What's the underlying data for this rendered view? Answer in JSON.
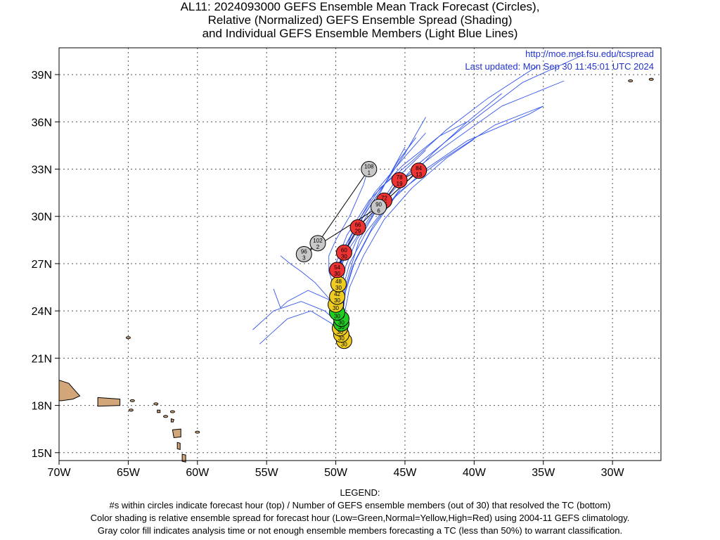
{
  "title": {
    "line1": "AL11: 2024093000 GEFS Ensemble Mean Track Forecast (Circles),",
    "line2": "Relative (Normalized) GEFS Ensemble Spread (Shading)",
    "line3": "and Individual GEFS Ensemble Members (Light Blue Lines)"
  },
  "header_info": {
    "url": "http://moe.met.fsu.edu/tcspread",
    "updated": "Last updated: Mon Sep 30 11:45:01 UTC 2024"
  },
  "legend": {
    "heading": "LEGEND:",
    "line1": "#s within circles indicate forecast hour (top) / Number of GEFS ensemble members (out of 30) that resolved the TC (bottom)",
    "line2": "Color shading is relative ensemble spread for forecast hour (Low=Green,Normal=Yellow,High=Red) using 2004-11 GEFS climatology.",
    "line3": "Gray color fill indicates analysis time or not enough ensemble members forecasting a TC (less than 50%) to warrant classification."
  },
  "colors": {
    "low": "#22cc22",
    "normal": "#eecc22",
    "high": "#ee3333",
    "gray": "#c8c8c8",
    "member_line": "#3355ee",
    "land": "#d2a679",
    "info_text": "#2233cc"
  },
  "axes": {
    "x_ticks": [
      "70W",
      "65W",
      "60W",
      "55W",
      "50W",
      "45W",
      "40W",
      "35W",
      "30W"
    ],
    "y_ticks": [
      "15N",
      "18N",
      "21N",
      "24N",
      "27N",
      "30N",
      "33N",
      "36N",
      "39N"
    ]
  },
  "chart_data": {
    "type": "scatter",
    "xlim": [
      -70,
      -26.5
    ],
    "ylim": [
      14.5,
      40.7
    ],
    "grid": true,
    "track": [
      {
        "hour": "0",
        "members": "30",
        "spread": "normal",
        "lon": -49.4,
        "lat": 22.1
      },
      {
        "hour": "6",
        "members": "30",
        "spread": "normal",
        "lon": -49.6,
        "lat": 22.5
      },
      {
        "hour": "12",
        "members": "30",
        "spread": "normal",
        "lon": -49.7,
        "lat": 22.9
      },
      {
        "hour": "18",
        "members": "30",
        "spread": "low",
        "lon": -49.6,
        "lat": 23.2
      },
      {
        "hour": "24",
        "members": "30",
        "spread": "low",
        "lon": -49.6,
        "lat": 23.5
      },
      {
        "hour": "30",
        "members": "30",
        "spread": "low",
        "lon": -49.9,
        "lat": 23.9
      },
      {
        "hour": "36",
        "members": "30",
        "spread": "normal",
        "lon": -50.0,
        "lat": 24.4
      },
      {
        "hour": "42",
        "members": "30",
        "spread": "normal",
        "lon": -49.9,
        "lat": 24.9
      },
      {
        "hour": "48",
        "members": "30",
        "spread": "normal",
        "lon": -49.8,
        "lat": 25.7
      },
      {
        "hour": "54",
        "members": "30",
        "spread": "high",
        "lon": -49.9,
        "lat": 26.6
      },
      {
        "hour": "60",
        "members": "30",
        "spread": "high",
        "lon": -49.4,
        "lat": 27.7
      },
      {
        "hour": "66",
        "members": "29",
        "spread": "high",
        "lon": -48.4,
        "lat": 29.3
      },
      {
        "hour": "72",
        "members": "25",
        "spread": "high",
        "lon": -46.5,
        "lat": 31.0
      },
      {
        "hour": "78",
        "members": "19",
        "spread": "high",
        "lon": -45.4,
        "lat": 32.3
      },
      {
        "hour": "84",
        "members": "13",
        "spread": "high",
        "lon": -44.0,
        "lat": 32.9
      },
      {
        "hour": "90",
        "members": "6",
        "spread": "gray",
        "lon": -46.9,
        "lat": 30.6
      },
      {
        "hour": "96",
        "members": "3",
        "spread": "gray",
        "lon": -52.3,
        "lat": 27.6
      },
      {
        "hour": "102",
        "members": "2",
        "spread": "gray",
        "lon": -51.3,
        "lat": 28.3
      },
      {
        "hour": "108",
        "members": "1",
        "spread": "gray",
        "lon": -47.6,
        "lat": 33.0
      }
    ],
    "members": [
      [
        [
          -49.5,
          22.2
        ],
        [
          -49.8,
          23.5
        ],
        [
          -50.0,
          25.0
        ],
        [
          -49.8,
          26.5
        ],
        [
          -49.0,
          28.0
        ],
        [
          -47.5,
          30.0
        ],
        [
          -45.0,
          32.5
        ],
        [
          -42.0,
          34.5
        ],
        [
          -38.0,
          37.0
        ],
        [
          -33.5,
          38.6
        ]
      ],
      [
        [
          -49.5,
          22.2
        ],
        [
          -49.6,
          23.6
        ],
        [
          -49.7,
          25.1
        ],
        [
          -49.3,
          26.8
        ],
        [
          -48.5,
          28.5
        ],
        [
          -47.0,
          30.5
        ],
        [
          -44.5,
          33.0
        ],
        [
          -41.0,
          35.5
        ],
        [
          -36.5,
          38.5
        ],
        [
          -32.0,
          40.3
        ]
      ],
      [
        [
          -49.5,
          22.2
        ],
        [
          -49.8,
          23.8
        ],
        [
          -50.1,
          25.3
        ],
        [
          -50.0,
          27.0
        ],
        [
          -49.2,
          28.8
        ],
        [
          -47.6,
          31.0
        ],
        [
          -45.2,
          33.2
        ],
        [
          -42.5,
          35.1
        ],
        [
          -40.5,
          36.0
        ]
      ],
      [
        [
          -49.5,
          22.2
        ],
        [
          -49.5,
          23.6
        ],
        [
          -49.4,
          25.0
        ],
        [
          -48.8,
          26.8
        ],
        [
          -47.5,
          29.0
        ],
        [
          -45.5,
          31.5
        ],
        [
          -42.5,
          33.5
        ],
        [
          -38.5,
          35.8
        ],
        [
          -35.0,
          37.0
        ]
      ],
      [
        [
          -49.5,
          22.2
        ],
        [
          -49.6,
          23.7
        ],
        [
          -49.8,
          25.2
        ],
        [
          -49.6,
          27.0
        ],
        [
          -48.8,
          29.0
        ],
        [
          -47.2,
          31.5
        ],
        [
          -45.0,
          33.8
        ],
        [
          -43.5,
          35.3
        ]
      ],
      [
        [
          -49.5,
          22.2
        ],
        [
          -49.9,
          23.5
        ],
        [
          -50.5,
          24.8
        ],
        [
          -51.5,
          25.8
        ],
        [
          -52.5,
          26.5
        ],
        [
          -53.3,
          27.0
        ],
        [
          -54.0,
          27.5
        ]
      ],
      [
        [
          -49.5,
          22.2
        ],
        [
          -50.3,
          23.2
        ],
        [
          -51.8,
          24.0
        ],
        [
          -53.5,
          23.5
        ],
        [
          -55.5,
          21.9
        ]
      ],
      [
        [
          -49.5,
          22.2
        ],
        [
          -49.7,
          23.6
        ],
        [
          -50.2,
          24.6
        ],
        [
          -52.0,
          25.3
        ],
        [
          -53.5,
          24.6
        ],
        [
          -54.0,
          24.2
        ],
        [
          -54.5,
          25.4
        ]
      ],
      [
        [
          -49.5,
          22.2
        ],
        [
          -49.7,
          23.8
        ],
        [
          -50.0,
          25.2
        ],
        [
          -50.5,
          26.5
        ],
        [
          -50.5,
          27.5
        ],
        [
          -50.0,
          28.5
        ],
        [
          -49.0,
          30.0
        ],
        [
          -48.0,
          32.0
        ],
        [
          -47.5,
          33.5
        ]
      ],
      [
        [
          -49.5,
          22.2
        ],
        [
          -49.8,
          23.7
        ],
        [
          -50.0,
          25.1
        ],
        [
          -49.9,
          26.7
        ],
        [
          -49.2,
          28.3
        ],
        [
          -47.8,
          30.3
        ],
        [
          -46.5,
          32.0
        ],
        [
          -45.5,
          33.5
        ],
        [
          -44.2,
          35.0
        ]
      ],
      [
        [
          -49.5,
          22.2
        ],
        [
          -49.4,
          23.7
        ],
        [
          -49.0,
          25.5
        ],
        [
          -48.0,
          27.5
        ],
        [
          -46.5,
          29.8
        ],
        [
          -44.5,
          31.8
        ],
        [
          -42.0,
          33.7
        ],
        [
          -40.0,
          34.9
        ]
      ],
      [
        [
          -49.5,
          22.2
        ],
        [
          -49.7,
          23.8
        ],
        [
          -49.9,
          25.3
        ],
        [
          -49.7,
          26.8
        ],
        [
          -49.0,
          28.3
        ],
        [
          -48.0,
          30.0
        ],
        [
          -46.5,
          32.0
        ],
        [
          -45.0,
          34.0
        ],
        [
          -43.5,
          36.3
        ]
      ],
      [
        [
          -49.5,
          22.2
        ],
        [
          -49.6,
          23.7
        ],
        [
          -49.6,
          25.1
        ],
        [
          -49.0,
          27.0
        ],
        [
          -47.8,
          29.0
        ],
        [
          -46.0,
          31.0
        ],
        [
          -43.5,
          33.0
        ],
        [
          -40.5,
          34.8
        ],
        [
          -36.0,
          36.5
        ],
        [
          -35.0,
          37.0
        ]
      ],
      [
        [
          -49.5,
          22.2
        ],
        [
          -49.8,
          23.6
        ],
        [
          -50.0,
          24.8
        ],
        [
          -49.8,
          26.3
        ],
        [
          -49.5,
          27.5
        ],
        [
          -48.5,
          29.0
        ],
        [
          -47.2,
          30.8
        ],
        [
          -46.0,
          32.8
        ],
        [
          -45.0,
          34.4
        ]
      ],
      [
        [
          -49.5,
          22.2
        ],
        [
          -49.6,
          23.5
        ],
        [
          -49.5,
          24.9
        ],
        [
          -49.0,
          26.5
        ],
        [
          -48.3,
          28.5
        ],
        [
          -47.0,
          30.5
        ],
        [
          -45.5,
          32.5
        ],
        [
          -43.5,
          34.2
        ]
      ],
      [
        [
          -49.5,
          22.2
        ],
        [
          -49.7,
          23.6
        ],
        [
          -49.8,
          25.0
        ],
        [
          -49.8,
          26.5
        ],
        [
          -49.4,
          28.0
        ],
        [
          -48.3,
          29.8
        ],
        [
          -46.8,
          31.8
        ],
        [
          -44.5,
          33.5
        ],
        [
          -42.0,
          35.5
        ],
        [
          -39.0,
          37.5
        ],
        [
          -35.5,
          39.5
        ]
      ],
      [
        [
          -49.5,
          22.2
        ],
        [
          -49.5,
          23.7
        ],
        [
          -49.3,
          25.2
        ],
        [
          -48.6,
          27.2
        ],
        [
          -47.3,
          29.4
        ],
        [
          -45.3,
          31.8
        ],
        [
          -43.0,
          34.0
        ],
        [
          -40.5,
          36.0
        ],
        [
          -38.0,
          37.8
        ]
      ],
      [
        [
          -49.5,
          22.2
        ],
        [
          -49.9,
          23.3
        ],
        [
          -50.8,
          24.0
        ],
        [
          -52.5,
          24.6
        ],
        [
          -54.5,
          24.0
        ],
        [
          -56.0,
          22.8
        ]
      ]
    ]
  }
}
